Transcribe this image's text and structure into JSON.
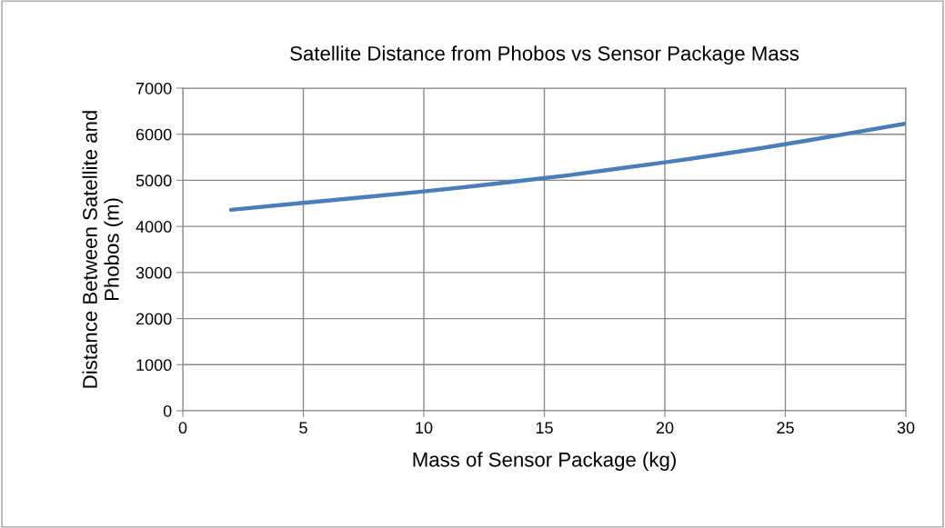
{
  "chart_data": {
    "type": "line",
    "title": "Satellite Distance from Phobos vs Sensor Package Mass",
    "xlabel": "Mass of Sensor Package (kg)",
    "ylabel": "Distance Between Satellite and\nPhobos (m)",
    "x": [
      2,
      4,
      6,
      8,
      10,
      12,
      14,
      16,
      18,
      20,
      22,
      24,
      26,
      28,
      30
    ],
    "series": [
      {
        "color": "#4a7ebb",
        "values": [
          4360,
          4460,
          4560,
          4660,
          4760,
          4870,
          4990,
          5110,
          5250,
          5390,
          5540,
          5700,
          5870,
          6050,
          6230
        ]
      }
    ],
    "xlim": [
      0,
      30
    ],
    "xticks": [
      0,
      5,
      10,
      15,
      20,
      25,
      30
    ],
    "ylim": [
      0,
      7000
    ],
    "yticks": [
      0,
      1000,
      2000,
      3000,
      4000,
      5000,
      6000,
      7000
    ],
    "grid": true,
    "marker": "none",
    "line_style": "solid"
  }
}
